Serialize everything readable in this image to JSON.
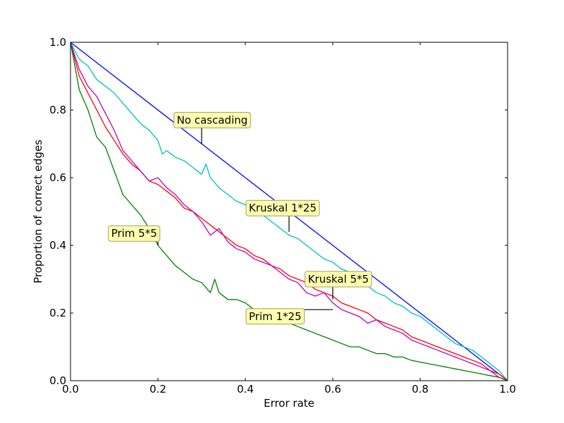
{
  "chart_data": {
    "type": "line",
    "title": "",
    "xlabel": "Error rate",
    "ylabel": "Proportion of correct edges",
    "xlim": [
      0.0,
      1.0
    ],
    "ylim": [
      0.0,
      1.0
    ],
    "xticks": [
      0.0,
      0.2,
      0.4,
      0.6,
      0.8,
      1.0
    ],
    "yticks": [
      0.0,
      0.2,
      0.4,
      0.6,
      0.8,
      1.0
    ],
    "xtick_labels": [
      "0.0",
      "0.2",
      "0.4",
      "0.6",
      "0.8",
      "1.0"
    ],
    "ytick_labels": [
      "0.0",
      "0.2",
      "0.4",
      "0.6",
      "0.8",
      "1.0"
    ],
    "grid": false,
    "legend": "none",
    "series": [
      {
        "color": "#0000ff",
        "x": [
          0.0,
          1.0
        ],
        "y": [
          1.0,
          0.0
        ]
      },
      {
        "color": "#00bfbf",
        "x": [
          0.0,
          0.02,
          0.04,
          0.06,
          0.08,
          0.1,
          0.12,
          0.14,
          0.16,
          0.18,
          0.2,
          0.21,
          0.22,
          0.24,
          0.26,
          0.28,
          0.3,
          0.31,
          0.32,
          0.34,
          0.36,
          0.38,
          0.4,
          0.42,
          0.44,
          0.46,
          0.48,
          0.5,
          0.52,
          0.54,
          0.56,
          0.58,
          0.6,
          0.62,
          0.64,
          0.66,
          0.68,
          0.7,
          0.72,
          0.74,
          0.76,
          0.78,
          0.8,
          0.82,
          0.84,
          0.86,
          0.88,
          0.9,
          0.92,
          0.94,
          0.96,
          0.98,
          1.0
        ],
        "y": [
          1.0,
          0.95,
          0.93,
          0.89,
          0.87,
          0.85,
          0.82,
          0.79,
          0.76,
          0.74,
          0.71,
          0.67,
          0.68,
          0.66,
          0.65,
          0.63,
          0.61,
          0.64,
          0.6,
          0.57,
          0.55,
          0.53,
          0.52,
          0.5,
          0.49,
          0.47,
          0.45,
          0.43,
          0.42,
          0.4,
          0.38,
          0.36,
          0.35,
          0.33,
          0.32,
          0.3,
          0.28,
          0.26,
          0.25,
          0.23,
          0.22,
          0.2,
          0.19,
          0.17,
          0.15,
          0.13,
          0.11,
          0.1,
          0.09,
          0.07,
          0.05,
          0.03,
          0.0
        ]
      },
      {
        "color": "#ff0000",
        "x": [
          0.0,
          0.02,
          0.04,
          0.06,
          0.08,
          0.1,
          0.12,
          0.14,
          0.16,
          0.18,
          0.2,
          0.22,
          0.24,
          0.26,
          0.28,
          0.3,
          0.32,
          0.34,
          0.36,
          0.38,
          0.4,
          0.42,
          0.44,
          0.46,
          0.48,
          0.5,
          0.52,
          0.54,
          0.56,
          0.58,
          0.6,
          0.62,
          0.64,
          0.66,
          0.68,
          0.7,
          0.72,
          0.74,
          0.76,
          0.78,
          0.8,
          0.82,
          0.84,
          0.86,
          0.88,
          0.9,
          0.92,
          0.94,
          0.96,
          0.98,
          1.0
        ],
        "y": [
          1.0,
          0.9,
          0.85,
          0.8,
          0.75,
          0.71,
          0.67,
          0.64,
          0.62,
          0.59,
          0.58,
          0.56,
          0.54,
          0.51,
          0.5,
          0.48,
          0.46,
          0.44,
          0.42,
          0.4,
          0.39,
          0.37,
          0.36,
          0.34,
          0.33,
          0.31,
          0.3,
          0.29,
          0.27,
          0.26,
          0.25,
          0.23,
          0.22,
          0.21,
          0.2,
          0.18,
          0.17,
          0.16,
          0.15,
          0.13,
          0.12,
          0.11,
          0.1,
          0.09,
          0.08,
          0.07,
          0.06,
          0.05,
          0.03,
          0.02,
          0.0
        ]
      },
      {
        "color": "#bf00bf",
        "x": [
          0.0,
          0.02,
          0.04,
          0.06,
          0.08,
          0.1,
          0.12,
          0.14,
          0.16,
          0.18,
          0.2,
          0.22,
          0.24,
          0.26,
          0.28,
          0.3,
          0.32,
          0.34,
          0.36,
          0.38,
          0.4,
          0.42,
          0.44,
          0.46,
          0.48,
          0.5,
          0.52,
          0.54,
          0.56,
          0.58,
          0.6,
          0.62,
          0.64,
          0.66,
          0.68,
          0.7,
          0.72,
          0.74,
          0.76,
          0.78,
          0.8,
          0.82,
          0.84,
          0.86,
          0.88,
          0.9,
          0.92,
          0.94,
          0.96,
          0.98,
          1.0
        ],
        "y": [
          1.0,
          0.92,
          0.87,
          0.84,
          0.79,
          0.74,
          0.68,
          0.65,
          0.62,
          0.59,
          0.6,
          0.57,
          0.55,
          0.52,
          0.5,
          0.47,
          0.43,
          0.45,
          0.41,
          0.39,
          0.38,
          0.36,
          0.35,
          0.34,
          0.32,
          0.3,
          0.29,
          0.26,
          0.25,
          0.26,
          0.23,
          0.21,
          0.2,
          0.19,
          0.17,
          0.18,
          0.16,
          0.15,
          0.14,
          0.12,
          0.11,
          0.1,
          0.09,
          0.08,
          0.07,
          0.06,
          0.05,
          0.04,
          0.03,
          0.01,
          0.0
        ]
      },
      {
        "color": "#008000",
        "x": [
          0.0,
          0.02,
          0.04,
          0.06,
          0.08,
          0.1,
          0.12,
          0.14,
          0.16,
          0.18,
          0.2,
          0.22,
          0.24,
          0.26,
          0.28,
          0.3,
          0.32,
          0.33,
          0.34,
          0.36,
          0.38,
          0.4,
          0.42,
          0.44,
          0.46,
          0.48,
          0.5,
          0.52,
          0.54,
          0.56,
          0.58,
          0.6,
          0.62,
          0.64,
          0.66,
          0.68,
          0.7,
          0.72,
          0.74,
          0.76,
          0.78,
          0.8,
          0.82,
          0.84,
          0.86,
          0.88,
          0.9,
          0.92,
          0.94,
          0.96,
          0.98,
          1.0
        ],
        "y": [
          1.0,
          0.86,
          0.8,
          0.72,
          0.69,
          0.62,
          0.55,
          0.52,
          0.49,
          0.45,
          0.4,
          0.37,
          0.34,
          0.32,
          0.3,
          0.29,
          0.26,
          0.3,
          0.26,
          0.24,
          0.24,
          0.23,
          0.21,
          0.2,
          0.19,
          0.18,
          0.17,
          0.16,
          0.15,
          0.14,
          0.13,
          0.12,
          0.11,
          0.1,
          0.1,
          0.09,
          0.08,
          0.08,
          0.07,
          0.07,
          0.06,
          0.055,
          0.05,
          0.045,
          0.04,
          0.035,
          0.03,
          0.025,
          0.02,
          0.015,
          0.01,
          0.0
        ]
      }
    ],
    "annotations": [
      {
        "text": "No cascading",
        "text_xy": [
          0.235,
          0.77
        ],
        "point_xy": [
          0.3,
          0.7
        ]
      },
      {
        "text": "Kruskal 1*25",
        "text_xy": [
          0.4,
          0.51
        ],
        "point_xy": [
          0.5,
          0.44
        ]
      },
      {
        "text": "Kruskal 5*5",
        "text_xy": [
          0.535,
          0.3
        ],
        "point_xy": [
          0.6,
          0.24
        ]
      },
      {
        "text": "Prim 5*5",
        "text_xy": [
          0.085,
          0.435
        ],
        "point_xy": [
          0.2,
          0.4
        ]
      },
      {
        "text": "Prim 1*25",
        "text_xy": [
          0.4,
          0.19
        ],
        "point_xy": [
          0.6,
          0.21
        ]
      }
    ]
  }
}
